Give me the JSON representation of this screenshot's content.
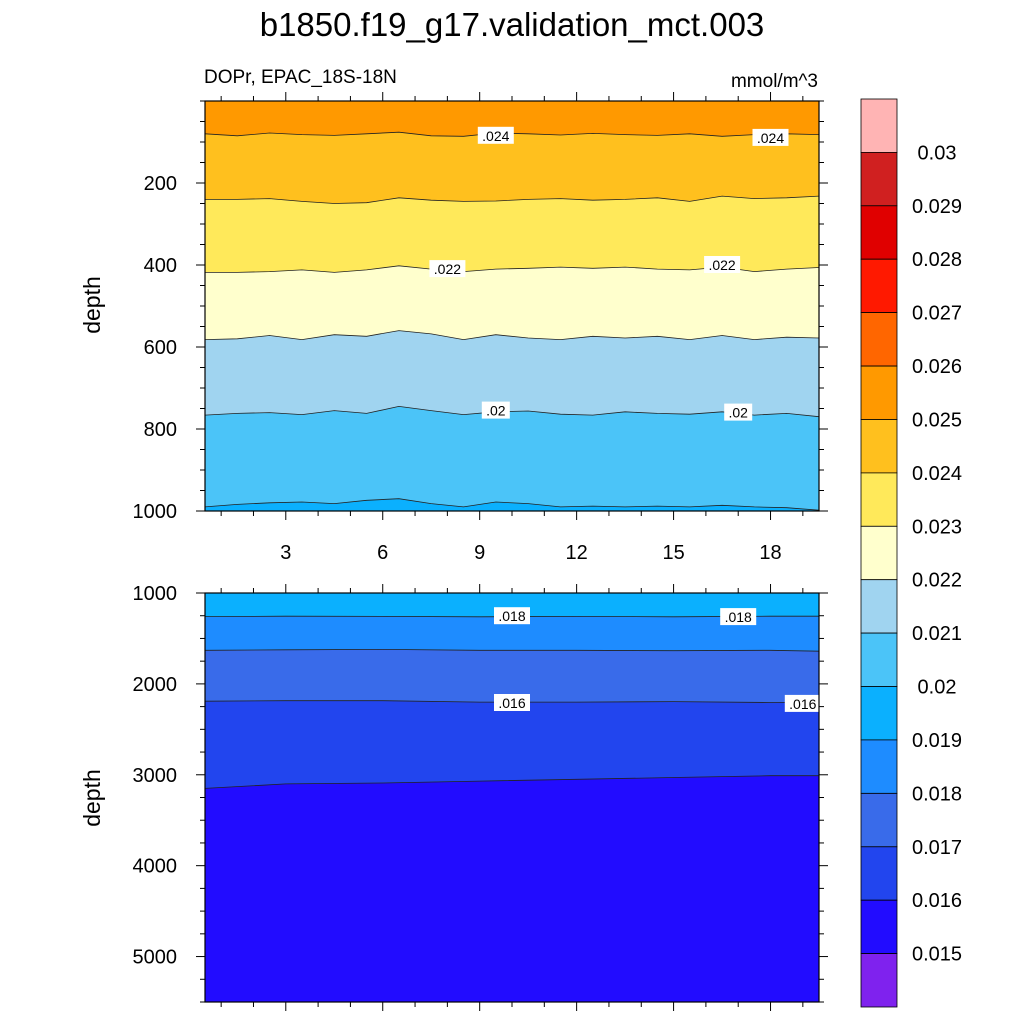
{
  "title": "b1850.f19_g17.validation_mct.003",
  "subtitle_left": "DOPr, EPAC_18S-18N",
  "subtitle_right": "mmol/m^3",
  "chart_data": [
    {
      "type": "contour",
      "panel": "upper",
      "xlabel": "",
      "ylabel": "depth",
      "xlim": [
        0.5,
        19.5
      ],
      "ylim": [
        1000,
        0
      ],
      "y_reversed": true,
      "x_ticks": [
        "3",
        "6",
        "9",
        "12",
        "15",
        "18"
      ],
      "x_tick_values": [
        3,
        6,
        9,
        12,
        15,
        18
      ],
      "y_ticks": [
        "200",
        "400",
        "600",
        "800",
        "1000"
      ],
      "y_tick_values": [
        200,
        400,
        600,
        800,
        1000
      ],
      "x": [
        0.5,
        1.5,
        2.5,
        3.5,
        4.5,
        5.5,
        6.5,
        7.5,
        8.5,
        9.5,
        10.5,
        11.5,
        12.5,
        13.5,
        14.5,
        15.5,
        16.5,
        17.5,
        18.5,
        19.5
      ],
      "contours": [
        {
          "level": 0.0245,
          "depth": [
            80,
            85,
            78,
            82,
            84,
            80,
            76,
            85,
            86,
            78,
            80,
            83,
            79,
            82,
            84,
            80,
            86,
            82,
            80,
            82
          ]
        },
        {
          "level": 0.0235,
          "depth": [
            240,
            240,
            238,
            245,
            250,
            248,
            236,
            242,
            245,
            244,
            240,
            238,
            242,
            240,
            236,
            245,
            232,
            238,
            236,
            232
          ]
        },
        {
          "level": 0.0225,
          "depth": [
            418,
            418,
            416,
            412,
            418,
            412,
            402,
            410,
            416,
            410,
            408,
            405,
            408,
            405,
            410,
            412,
            405,
            416,
            410,
            406
          ]
        },
        {
          "level": 0.0215,
          "depth": [
            582,
            580,
            572,
            582,
            570,
            574,
            560,
            568,
            582,
            570,
            578,
            582,
            574,
            578,
            574,
            582,
            572,
            582,
            576,
            578
          ]
        },
        {
          "level": 0.0205,
          "depth": [
            766,
            762,
            760,
            765,
            755,
            762,
            745,
            755,
            765,
            758,
            756,
            764,
            766,
            758,
            762,
            764,
            758,
            766,
            762,
            770
          ]
        },
        {
          "level": 0.0195,
          "depth": [
            990,
            984,
            980,
            978,
            982,
            974,
            970,
            982,
            990,
            978,
            982,
            990,
            988,
            990,
            988,
            990,
            986,
            990,
            992,
            998
          ]
        }
      ],
      "contour_labels": [
        {
          "text": ".024",
          "x": 9.5,
          "y": 85
        },
        {
          "text": ".024",
          "x": 18.0,
          "y": 90
        },
        {
          "text": ".022",
          "x": 8.0,
          "y": 410
        },
        {
          "text": ".022",
          "x": 16.5,
          "y": 400
        },
        {
          "text": ".02",
          "x": 9.5,
          "y": 755
        },
        {
          "text": ".02",
          "x": 17.0,
          "y": 760
        }
      ]
    },
    {
      "type": "contour",
      "panel": "lower",
      "xlabel": "",
      "ylabel": "depth",
      "xlim": [
        0.5,
        19.5
      ],
      "ylim": [
        5500,
        1000
      ],
      "y_reversed": true,
      "x_ticks": [],
      "y_ticks": [
        "1000",
        "2000",
        "3000",
        "4000",
        "5000"
      ],
      "y_tick_values": [
        1000,
        2000,
        3000,
        4000,
        5000
      ],
      "x": [
        0.5,
        3.0,
        6.0,
        9.0,
        12.0,
        15.0,
        18.0,
        19.5
      ],
      "contours": [
        {
          "level": 0.0185,
          "depth": [
            1260,
            1255,
            1258,
            1262,
            1258,
            1262,
            1255,
            1255
          ]
        },
        {
          "level": 0.0175,
          "depth": [
            1630,
            1625,
            1620,
            1630,
            1630,
            1635,
            1630,
            1640
          ]
        },
        {
          "level": 0.0165,
          "depth": [
            2190,
            2185,
            2185,
            2200,
            2200,
            2195,
            2205,
            2200
          ]
        },
        {
          "level": 0.0155,
          "depth": [
            3150,
            3100,
            3090,
            3070,
            3050,
            3030,
            3010,
            3010
          ]
        }
      ],
      "contour_labels": [
        {
          "text": ".018",
          "x": 10.0,
          "y": 1255
        },
        {
          "text": ".018",
          "x": 17.0,
          "y": 1265
        },
        {
          "text": ".016",
          "x": 10.0,
          "y": 2210
        },
        {
          "text": ".016",
          "x": 19.0,
          "y": 2220
        }
      ]
    }
  ],
  "colorbar": {
    "labels": [
      "0.015",
      "0.016",
      "0.017",
      "0.018",
      "0.019",
      "0.02",
      "0.021",
      "0.022",
      "0.023",
      "0.024",
      "0.025",
      "0.026",
      "0.027",
      "0.028",
      "0.029",
      "0.03"
    ],
    "colors": [
      "#7f22ee",
      "#220cff",
      "#2245ee",
      "#396bea",
      "#1e8cff",
      "#0bb0fe",
      "#4bc4f8",
      "#a0d4f0",
      "#ffffcd",
      "#ffe95a",
      "#ffc01e",
      "#ff9900",
      "#ff6600",
      "#ff1900",
      "#e00000",
      "#d02020",
      "#ffb4b4"
    ]
  }
}
